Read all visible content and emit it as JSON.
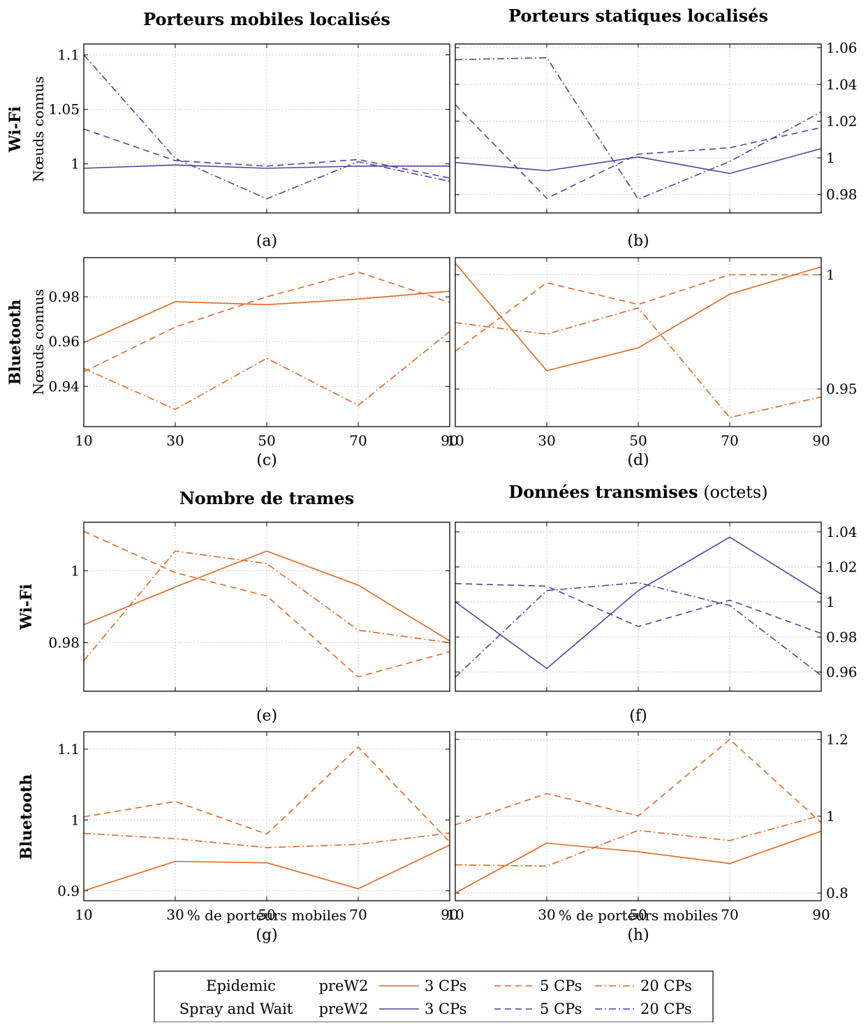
{
  "figure": {
    "titles": {
      "top_left": "Porteurs mobiles localisés",
      "top_right": "Porteurs statiques localisés",
      "bottom_left": "Nombre de trames",
      "bottom_right_bold": "Données transmises",
      "bottom_right_unit": "(octets)"
    },
    "row_labels": {
      "wifi": "Wi-Fi",
      "bluetooth": "Bluetooth",
      "nodes_known": "Nœuds connus"
    },
    "xlabel": "% de porteurs mobiles",
    "panel_labels": [
      "(a)",
      "(b)",
      "(c)",
      "(d)",
      "(e)",
      "(f)",
      "(g)",
      "(h)"
    ],
    "colors": {
      "epidemic": "#e0661f",
      "spray": "#5a3fa0",
      "grid": "#bdbdbd"
    },
    "legend": {
      "rows": [
        {
          "protocol": "Epidemic",
          "method": "preW2",
          "color_key": "epidemic",
          "entries": [
            "3 CPs",
            "5 CPs",
            "20 CPs"
          ]
        },
        {
          "protocol": "Spray and Wait",
          "method": "preW2",
          "color_key": "spray",
          "entries": [
            "3 CPs",
            "5 CPs",
            "20 CPs"
          ]
        }
      ]
    }
  },
  "chart_data": [
    {
      "type": "line",
      "label": "(a)",
      "title": "Porteurs mobiles localisés",
      "ylabel": "Nœuds connus",
      "x": [
        10,
        30,
        50,
        70,
        90
      ],
      "xlim": [
        10,
        90
      ],
      "ylim": [
        0.955,
        1.11
      ],
      "yticks": [
        1,
        1.05,
        1.1
      ],
      "ytick_labels": [
        "1",
        "1.05",
        "1.1"
      ],
      "yaxis_side": "left",
      "show_xticks": false,
      "grid": true,
      "series": [
        {
          "protocol": "Spray and Wait",
          "cps": "3 CPs",
          "values": [
            0.996,
            0.999,
            0.996,
            0.998,
            0.998
          ]
        },
        {
          "protocol": "Spray and Wait",
          "cps": "5 CPs",
          "values": [
            1.032,
            1.003,
            0.998,
            1.004,
            0.987
          ]
        },
        {
          "protocol": "Spray and Wait",
          "cps": "20 CPs",
          "values": [
            1.1,
            1.005,
            0.968,
            1.002,
            0.984
          ]
        }
      ]
    },
    {
      "type": "line",
      "label": "(b)",
      "title": "Porteurs statiques localisés",
      "ylabel": "",
      "x": [
        10,
        30,
        50,
        70,
        90
      ],
      "xlim": [
        10,
        90
      ],
      "ylim": [
        0.97,
        1.062
      ],
      "yticks": [
        0.98,
        1,
        1.02,
        1.04,
        1.06
      ],
      "ytick_labels": [
        "0.98",
        "1",
        "1.02",
        "1.04",
        "1.06"
      ],
      "yaxis_side": "right",
      "show_xticks": false,
      "grid": true,
      "series": [
        {
          "protocol": "Spray and Wait",
          "cps": "3 CPs",
          "values": [
            0.9975,
            0.993,
            1.0005,
            0.9915,
            1.005
          ]
        },
        {
          "protocol": "Spray and Wait",
          "cps": "5 CPs",
          "values": [
            1.029,
            0.978,
            1.002,
            1.0055,
            1.0165
          ]
        },
        {
          "protocol": "Spray and Wait",
          "cps": "20 CPs",
          "values": [
            1.0535,
            1.0545,
            0.9775,
            0.998,
            1.025
          ]
        }
      ]
    },
    {
      "type": "line",
      "label": "(c)",
      "title": "",
      "ylabel": "Nœuds connus",
      "x": [
        10,
        30,
        50,
        70,
        90
      ],
      "xlim": [
        10,
        90
      ],
      "ylim": [
        0.922,
        0.9975
      ],
      "yticks": [
        0.94,
        0.96,
        0.98
      ],
      "ytick_labels": [
        "0.94",
        "0.96",
        "0.98"
      ],
      "yaxis_side": "left",
      "show_xticks": true,
      "xtick_labels": [
        "10",
        "30",
        "50",
        "70",
        "90"
      ],
      "grid": true,
      "series": [
        {
          "protocol": "Epidemic",
          "cps": "3 CPs",
          "values": [
            0.9595,
            0.9778,
            0.9765,
            0.979,
            0.9825
          ]
        },
        {
          "protocol": "Epidemic",
          "cps": "5 CPs",
          "values": [
            0.9465,
            0.9665,
            0.98,
            0.991,
            0.9775
          ]
        },
        {
          "protocol": "Epidemic",
          "cps": "20 CPs",
          "values": [
            0.948,
            0.9297,
            0.9525,
            0.9315,
            0.9645
          ]
        }
      ]
    },
    {
      "type": "line",
      "label": "(d)",
      "title": "",
      "ylabel": "",
      "x": [
        10,
        30,
        50,
        70,
        90
      ],
      "xlim": [
        10,
        90
      ],
      "ylim": [
        0.9335,
        1.0075
      ],
      "yticks": [
        0.95,
        1
      ],
      "ytick_labels": [
        "0.95",
        "1"
      ],
      "yaxis_side": "right",
      "show_xticks": true,
      "xtick_labels": [
        "10",
        "30",
        "50",
        "70",
        "90"
      ],
      "grid": true,
      "series": [
        {
          "protocol": "Epidemic",
          "cps": "3 CPs",
          "values": [
            1.005,
            0.958,
            0.968,
            0.9915,
            1.0035
          ]
        },
        {
          "protocol": "Epidemic",
          "cps": "5 CPs",
          "values": [
            0.9665,
            0.9965,
            0.987,
            1.0,
            1.0
          ]
        },
        {
          "protocol": "Epidemic",
          "cps": "20 CPs",
          "values": [
            0.979,
            0.974,
            0.9855,
            0.9375,
            0.9465
          ]
        }
      ]
    },
    {
      "type": "line",
      "label": "(e)",
      "title": "Nombre de trames",
      "ylabel": "",
      "x": [
        10,
        30,
        50,
        70,
        90
      ],
      "xlim": [
        10,
        90
      ],
      "ylim": [
        0.9665,
        1.0135
      ],
      "yticks": [
        0.98,
        1
      ],
      "ytick_labels": [
        "0.98",
        "1"
      ],
      "yaxis_side": "left",
      "show_xticks": false,
      "grid": true,
      "series": [
        {
          "protocol": "Epidemic",
          "cps": "3 CPs",
          "values": [
            0.985,
            0.9955,
            1.0055,
            0.996,
            0.9805
          ]
        },
        {
          "protocol": "Epidemic",
          "cps": "5 CPs",
          "values": [
            1.011,
            0.9995,
            0.993,
            0.9705,
            0.9775
          ]
        },
        {
          "protocol": "Epidemic",
          "cps": "20 CPs",
          "values": [
            0.975,
            1.0055,
            1.002,
            0.9835,
            0.98
          ]
        }
      ]
    },
    {
      "type": "line",
      "label": "(f)",
      "title": "Données transmises (octets)",
      "ylabel": "",
      "x": [
        10,
        30,
        50,
        70,
        90
      ],
      "xlim": [
        10,
        90
      ],
      "ylim": [
        0.949,
        1.0455
      ],
      "yticks": [
        0.96,
        0.98,
        1,
        1.02,
        1.04
      ],
      "ytick_labels": [
        "0.96",
        "0.98",
        "1",
        "1.02",
        "1.04"
      ],
      "yaxis_side": "right",
      "show_xticks": false,
      "grid": true,
      "series": [
        {
          "protocol": "Spray and Wait",
          "cps": "3 CPs",
          "values": [
            1.0,
            0.962,
            1.0065,
            1.037,
            1.0045
          ]
        },
        {
          "protocol": "Spray and Wait",
          "cps": "5 CPs",
          "values": [
            1.0105,
            1.009,
            0.986,
            1.001,
            0.982
          ]
        },
        {
          "protocol": "Spray and Wait",
          "cps": "20 CPs",
          "values": [
            0.957,
            1.0065,
            1.011,
            0.998,
            0.958
          ]
        }
      ]
    },
    {
      "type": "line",
      "label": "(g)",
      "title": "",
      "ylabel": "",
      "xlabel": "% de porteurs mobiles",
      "x": [
        10,
        30,
        50,
        70,
        90
      ],
      "xlim": [
        10,
        90
      ],
      "ylim": [
        0.886,
        1.1245
      ],
      "yticks": [
        0.9,
        1,
        1.1
      ],
      "ytick_labels": [
        "0.9",
        "1",
        "1.1"
      ],
      "yaxis_side": "left",
      "show_xticks": true,
      "xtick_labels": [
        "10",
        "30",
        "50",
        "70",
        "90"
      ],
      "grid": true,
      "series": [
        {
          "protocol": "Epidemic",
          "cps": "3 CPs",
          "values": [
            0.9,
            0.9415,
            0.9395,
            0.903,
            0.9645
          ]
        },
        {
          "protocol": "Epidemic",
          "cps": "5 CPs",
          "values": [
            1.0045,
            1.026,
            0.98,
            1.103,
            0.969
          ]
        },
        {
          "protocol": "Epidemic",
          "cps": "20 CPs",
          "values": [
            0.981,
            0.9735,
            0.961,
            0.9655,
            0.9815
          ]
        }
      ]
    },
    {
      "type": "line",
      "label": "(h)",
      "title": "",
      "ylabel": "",
      "xlabel": "% de porteurs mobiles",
      "x": [
        10,
        30,
        50,
        70,
        90
      ],
      "xlim": [
        10,
        90
      ],
      "ylim": [
        0.78,
        1.22
      ],
      "yticks": [
        0.8,
        1,
        1.2
      ],
      "ytick_labels": [
        "0.8",
        "1",
        "1.2"
      ],
      "yaxis_side": "right",
      "show_xticks": true,
      "xtick_labels": [
        "10",
        "30",
        "50",
        "70",
        "90"
      ],
      "grid": true,
      "series": [
        {
          "protocol": "Epidemic",
          "cps": "3 CPs",
          "values": [
            0.8,
            0.93,
            0.9075,
            0.877,
            0.961
          ]
        },
        {
          "protocol": "Epidemic",
          "cps": "5 CPs",
          "values": [
            0.9775,
            1.059,
            1.001,
            1.2,
            0.9835
          ]
        },
        {
          "protocol": "Epidemic",
          "cps": "20 CPs",
          "values": [
            0.8735,
            0.87,
            0.963,
            0.9365,
            1.002
          ]
        }
      ]
    }
  ]
}
